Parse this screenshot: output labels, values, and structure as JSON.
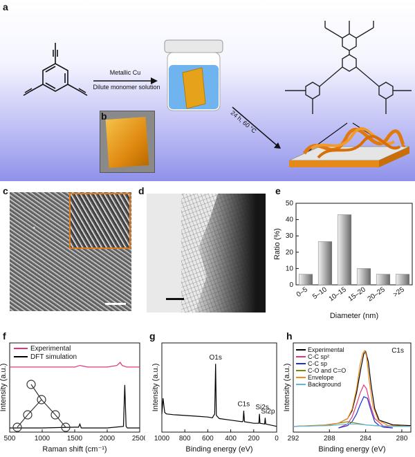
{
  "panels": {
    "a": "a",
    "b": "b",
    "c": "c",
    "d": "d",
    "e": "e",
    "f": "f",
    "g": "g",
    "h": "h"
  },
  "panel_a": {
    "arrow1_top": "Metallic Cu",
    "arrow1_bottom": "Dilute monomer solution",
    "arrow2": "24 h, 60 °C"
  },
  "chart_data": [
    {
      "type": "bar",
      "panel": "e",
      "categories": [
        "0–5",
        "5–10",
        "10–15",
        "15–20",
        "20–25",
        ">25"
      ],
      "values": [
        6.5,
        26.5,
        43,
        10,
        6.5,
        6.5
      ],
      "xlabel": "Diameter (nm)",
      "ylabel": "Ratio (%)",
      "ylim": [
        0,
        50
      ],
      "yticks": [
        0,
        10,
        20,
        30,
        40,
        50
      ]
    },
    {
      "type": "line",
      "panel": "f",
      "xlabel": "Raman shift (cm⁻¹)",
      "ylabel": "Intensity (a.u.)",
      "xlim": [
        500,
        2500
      ],
      "xticks": [
        500,
        1000,
        1500,
        2000,
        2500
      ],
      "legend": [
        "Experimental",
        "DFT simulation"
      ],
      "series": [
        {
          "name": "Experimental",
          "color": "#e0357a",
          "x": [
            500,
            1000,
            1500,
            1580,
            1700,
            2000,
            2150,
            2200,
            2230,
            2300,
            2500
          ],
          "y": [
            0.78,
            0.78,
            0.78,
            0.8,
            0.78,
            0.78,
            0.8,
            0.84,
            0.8,
            0.78,
            0.78
          ]
        },
        {
          "name": "DFT simulation",
          "color": "#000000",
          "x": [
            500,
            1000,
            1500,
            1560,
            1580,
            1600,
            2000,
            2250,
            2270,
            2290,
            2310,
            2500
          ],
          "y": [
            0.0,
            0.0,
            0.01,
            0.01,
            0.05,
            0.0,
            0.0,
            0.02,
            0.55,
            0.02,
            0.0,
            0.0
          ]
        }
      ]
    },
    {
      "type": "line",
      "panel": "g",
      "xlabel": "Binding energy (eV)",
      "ylabel": "Intensity (a.u.)",
      "xlim": [
        1000,
        0
      ],
      "xticks": [
        1000,
        800,
        600,
        400,
        200,
        0
      ],
      "annotations": [
        "O1s",
        "C1s",
        "Si2s",
        "Si2p"
      ],
      "series": [
        {
          "name": "",
          "color": "#000000",
          "x": [
            1000,
            990,
            975,
            960,
            900,
            800,
            700,
            600,
            560,
            540,
            532,
            525,
            500,
            400,
            300,
            292,
            287,
            280,
            200,
            155,
            150,
            145,
            105,
            100,
            95,
            0
          ],
          "y": [
            0.18,
            0.38,
            0.2,
            0.18,
            0.17,
            0.16,
            0.15,
            0.14,
            0.13,
            0.18,
            0.82,
            0.16,
            0.12,
            0.1,
            0.08,
            0.09,
            0.22,
            0.08,
            0.06,
            0.06,
            0.18,
            0.06,
            0.05,
            0.13,
            0.05,
            0.02
          ]
        }
      ]
    },
    {
      "type": "line",
      "panel": "h",
      "xlabel": "Binding energy (eV)",
      "ylabel": "Intensity (a.u.)",
      "title": "C1s",
      "xlim": [
        292,
        279
      ],
      "xticks": [
        292,
        288,
        284,
        280
      ],
      "legend": [
        "Experimental",
        "C-C sp²",
        "C-C sp",
        "C-O and C=O",
        "Envelope",
        "Background"
      ],
      "series": [
        {
          "name": "Experimental",
          "color": "#000000",
          "x": [
            292,
            289,
            287,
            286,
            285.5,
            285,
            284.5,
            284.2,
            284,
            283.7,
            283.4,
            283,
            282.5,
            281,
            279
          ],
          "y": [
            0.02,
            0.03,
            0.06,
            0.12,
            0.22,
            0.45,
            0.78,
            0.95,
            0.98,
            0.85,
            0.55,
            0.25,
            0.1,
            0.04,
            0.03
          ]
        },
        {
          "name": "C-C sp²",
          "color": "#e0357a",
          "x": [
            287,
            286,
            285.5,
            285,
            284.6,
            284.2,
            283.9,
            283.5,
            283,
            282,
            281
          ],
          "y": [
            0.0,
            0.05,
            0.14,
            0.3,
            0.45,
            0.55,
            0.5,
            0.3,
            0.12,
            0.02,
            0.0
          ]
        },
        {
          "name": "C-C sp",
          "color": "#1c2fd6",
          "x": [
            287,
            286,
            285.5,
            285,
            284.6,
            284.2,
            283.8,
            283.4,
            283,
            282.5,
            282,
            281
          ],
          "y": [
            0.0,
            0.03,
            0.08,
            0.18,
            0.3,
            0.4,
            0.38,
            0.22,
            0.08,
            0.03,
            0.01,
            0.0
          ]
        },
        {
          "name": "C-O and C=O",
          "color": "#7a8a00",
          "x": [
            292,
            290,
            288,
            287,
            286,
            285,
            284,
            283,
            281,
            279
          ],
          "y": [
            0.02,
            0.03,
            0.04,
            0.06,
            0.08,
            0.06,
            0.04,
            0.03,
            0.02,
            0.02
          ]
        },
        {
          "name": "Envelope",
          "color": "#f08a1a",
          "x": [
            292,
            289,
            287,
            286,
            285.5,
            285,
            284.6,
            284.3,
            284.1,
            283.9,
            283.6,
            283.2,
            282.6,
            281.5,
            279
          ],
          "y": [
            0.02,
            0.03,
            0.06,
            0.12,
            0.24,
            0.5,
            0.82,
            0.96,
            0.99,
            0.92,
            0.6,
            0.28,
            0.1,
            0.03,
            0.02
          ]
        },
        {
          "name": "Background",
          "color": "#5bb6e6",
          "x": [
            292,
            288,
            286,
            285,
            284,
            283,
            281,
            279
          ],
          "y": [
            0.02,
            0.03,
            0.05,
            0.05,
            0.04,
            0.03,
            0.02,
            0.02
          ]
        }
      ]
    }
  ]
}
